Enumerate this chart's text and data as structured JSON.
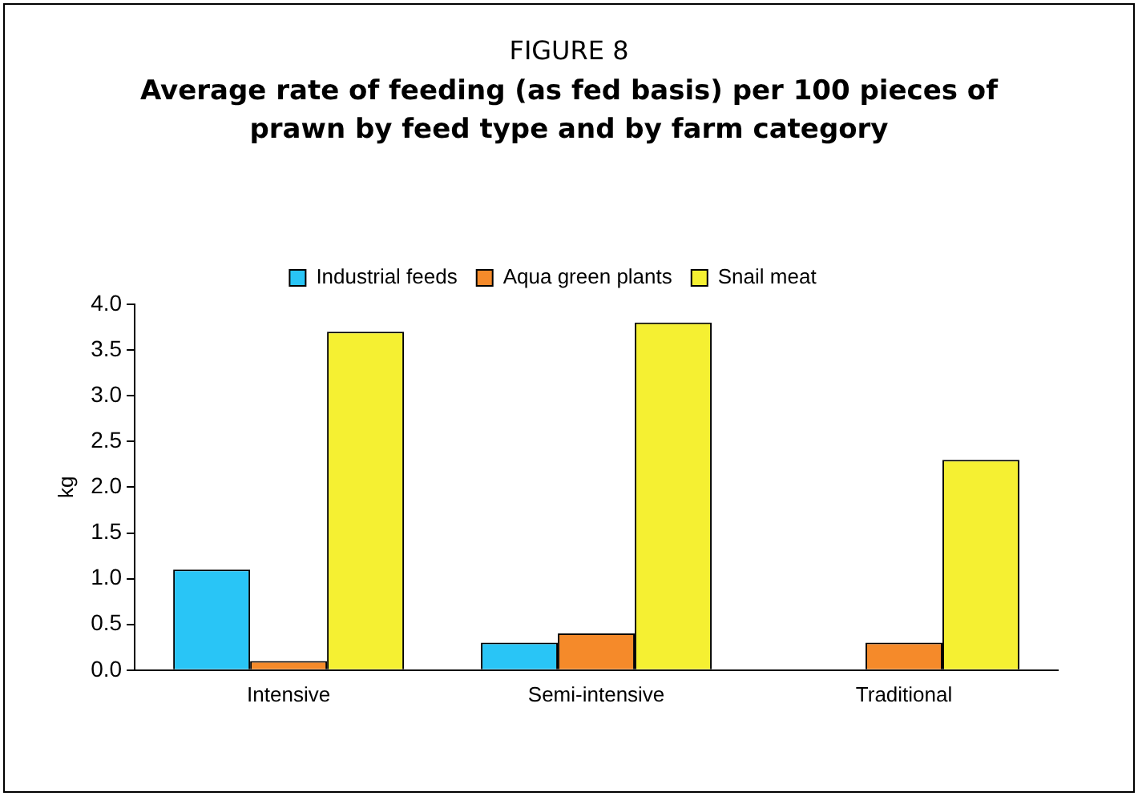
{
  "chart_data": {
    "type": "bar",
    "title": "FIGURE 8",
    "subtitle": "Average rate of feeding (as fed basis) per 100 pieces of prawn by feed type and by farm category",
    "ylabel": "kg",
    "categories": [
      "Intensive",
      "Semi-intensive",
      "Traditional"
    ],
    "series": [
      {
        "name": "Industrial feeds",
        "color": "#29c5f6",
        "values": [
          1.1,
          0.3,
          0
        ]
      },
      {
        "name": "Aqua green plants",
        "color": "#f58a2a",
        "values": [
          0.1,
          0.4,
          0.3
        ]
      },
      {
        "name": "Snail meat",
        "color": "#f5f032",
        "values": [
          3.7,
          3.8,
          2.3
        ]
      }
    ],
    "ylim": [
      0,
      4
    ],
    "yticks": [
      {
        "value": 0,
        "label": "0.0"
      },
      {
        "value": 0.5,
        "label": "0.5"
      },
      {
        "value": 1,
        "label": "1.0"
      },
      {
        "value": 1.5,
        "label": "1.5"
      },
      {
        "value": 2,
        "label": "2.0"
      },
      {
        "value": 2.5,
        "label": "2.5"
      },
      {
        "value": 3,
        "label": "3.0"
      },
      {
        "value": 3.5,
        "label": "3.5"
      },
      {
        "value": 4,
        "label": "4.0"
      }
    ],
    "grid": false,
    "legend": "top"
  }
}
